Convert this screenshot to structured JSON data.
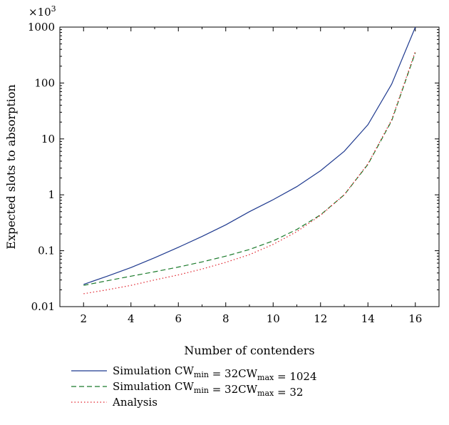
{
  "chart_data": {
    "type": "line",
    "xlabel": "Number of contenders",
    "ylabel": "Expected slots to absorption",
    "y_multiplier": "×10^3",
    "y_scale": "log",
    "xlim": [
      1,
      17
    ],
    "ylim": [
      0.01,
      1000
    ],
    "x_ticks": [
      2,
      4,
      6,
      8,
      10,
      12,
      14,
      16
    ],
    "y_ticks": [
      0.01,
      0.1,
      1,
      10,
      100,
      1000
    ],
    "y_tick_labels": [
      "0.01",
      "0.1",
      "1",
      "10",
      "100",
      "1000"
    ],
    "grid": false,
    "legend_position": "below",
    "series": [
      {
        "name": "Simulation CWmin = 32CWmax = 1024",
        "legend_parts": [
          "Simulation CW",
          "min",
          " = 32CW",
          "max",
          " = 1024"
        ],
        "color": "#1f3a8f",
        "dash": "solid",
        "x": [
          2,
          3,
          4,
          5,
          6,
          7,
          8,
          9,
          10,
          11,
          12,
          13,
          14,
          15,
          16
        ],
        "y": [
          0.025,
          0.035,
          0.05,
          0.075,
          0.115,
          0.18,
          0.29,
          0.5,
          0.82,
          1.4,
          2.7,
          6.0,
          18.0,
          95.0,
          1000.0
        ]
      },
      {
        "name": "Simulation CWmin = 32CWmax = 32",
        "legend_parts": [
          "Simulation CW",
          "min",
          " = 32CW",
          "max",
          " = 32"
        ],
        "color": "#1a7a2a",
        "dash": "dashed",
        "x": [
          2,
          3,
          4,
          5,
          6,
          7,
          8,
          9,
          10,
          11,
          12,
          13,
          14,
          15,
          16
        ],
        "y": [
          0.024,
          0.029,
          0.035,
          0.042,
          0.051,
          0.063,
          0.08,
          0.105,
          0.15,
          0.24,
          0.44,
          1.0,
          3.5,
          21.0,
          350.0
        ]
      },
      {
        "name": "Analysis",
        "legend_parts": [
          "Analysis"
        ],
        "color": "#e0202a",
        "dash": "dotted",
        "x": [
          2,
          3,
          4,
          5,
          6,
          7,
          8,
          9,
          10,
          11,
          12,
          13,
          14,
          15,
          16
        ],
        "y": [
          0.017,
          0.02,
          0.024,
          0.03,
          0.037,
          0.047,
          0.062,
          0.085,
          0.13,
          0.22,
          0.43,
          1.0,
          3.6,
          22.0,
          370.0
        ]
      }
    ]
  }
}
